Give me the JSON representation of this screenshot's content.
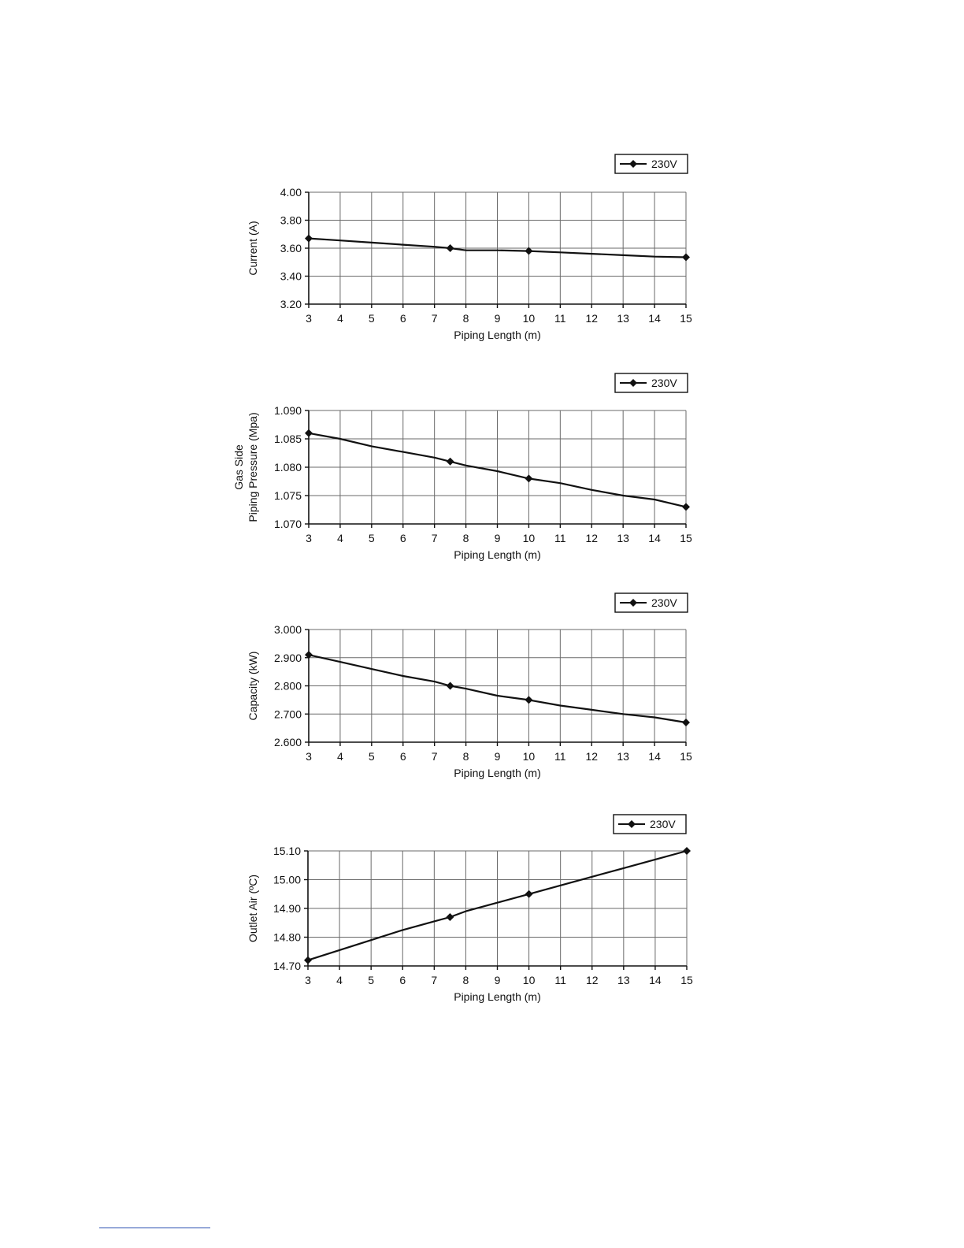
{
  "chart_data": [
    {
      "type": "line",
      "title": "",
      "xlabel": "Piping Length (m)",
      "ylabel": "Current (A)",
      "x_ticks": [
        3,
        4,
        5,
        6,
        7,
        8,
        9,
        10,
        11,
        12,
        13,
        14,
        15
      ],
      "y_ticks": [
        "3.20",
        "3.40",
        "3.60",
        "3.80",
        "4.00"
      ],
      "xlim": [
        3,
        15
      ],
      "ylim": [
        3.2,
        4.0
      ],
      "grid": true,
      "legend_position": "top-right",
      "series": [
        {
          "name": "230V",
          "x": [
            3,
            4,
            5,
            6,
            7,
            7.5,
            8,
            9,
            10,
            11,
            12,
            13,
            14,
            15
          ],
          "y": [
            3.67,
            3.655,
            3.64,
            3.625,
            3.61,
            3.6,
            3.585,
            3.585,
            3.58,
            3.57,
            3.56,
            3.55,
            3.54,
            3.535
          ],
          "markers_x": [
            3,
            7.5,
            10,
            15
          ],
          "markers_y": [
            3.67,
            3.6,
            3.58,
            3.535
          ]
        }
      ]
    },
    {
      "type": "line",
      "title": "",
      "xlabel": "Piping Length (m)",
      "ylabel_lines": [
        "Gas Side",
        "Piping Pressure (Mpa)"
      ],
      "x_ticks": [
        3,
        4,
        5,
        6,
        7,
        8,
        9,
        10,
        11,
        12,
        13,
        14,
        15
      ],
      "y_ticks": [
        "1.070",
        "1.075",
        "1.080",
        "1.085",
        "1.090"
      ],
      "xlim": [
        3,
        15
      ],
      "ylim": [
        1.07,
        1.09
      ],
      "grid": true,
      "legend_position": "top-right",
      "series": [
        {
          "name": "230V",
          "x": [
            3,
            4,
            5,
            6,
            7,
            7.5,
            8,
            9,
            10,
            11,
            12,
            13,
            14,
            15
          ],
          "y": [
            1.086,
            1.085,
            1.0837,
            1.0827,
            1.0817,
            1.081,
            1.0803,
            1.0793,
            1.078,
            1.0772,
            1.076,
            1.075,
            1.0743,
            1.073
          ],
          "markers_x": [
            3,
            7.5,
            10,
            15
          ],
          "markers_y": [
            1.086,
            1.081,
            1.078,
            1.073
          ]
        }
      ]
    },
    {
      "type": "line",
      "title": "",
      "xlabel": "Piping Length (m)",
      "ylabel": "Capacity (kW)",
      "x_ticks": [
        3,
        4,
        5,
        6,
        7,
        8,
        9,
        10,
        11,
        12,
        13,
        14,
        15
      ],
      "y_ticks": [
        "2.600",
        "2.700",
        "2.800",
        "2.900",
        "3.000"
      ],
      "xlim": [
        3,
        15
      ],
      "ylim": [
        2.6,
        3.0
      ],
      "grid": true,
      "legend_position": "top-right",
      "series": [
        {
          "name": "230V",
          "x": [
            3,
            4,
            5,
            6,
            7,
            7.5,
            8,
            9,
            10,
            11,
            12,
            13,
            14,
            15
          ],
          "y": [
            2.91,
            2.885,
            2.86,
            2.835,
            2.815,
            2.8,
            2.79,
            2.765,
            2.75,
            2.73,
            2.715,
            2.7,
            2.688,
            2.67
          ],
          "markers_x": [
            3,
            7.5,
            10,
            15
          ],
          "markers_y": [
            2.91,
            2.8,
            2.75,
            2.67
          ]
        }
      ]
    },
    {
      "type": "line",
      "title": "",
      "xlabel": "Piping Length (m)",
      "ylabel": "Outlet Air (ºC)",
      "x_ticks": [
        3,
        4,
        5,
        6,
        7,
        8,
        9,
        10,
        11,
        12,
        13,
        14,
        15
      ],
      "y_ticks": [
        "14.70",
        "14.80",
        "14.90",
        "15.00",
        "15.10"
      ],
      "xlim": [
        3,
        15
      ],
      "ylim": [
        14.7,
        15.1
      ],
      "grid": true,
      "legend_position": "top-right",
      "series": [
        {
          "name": "230V",
          "x": [
            3,
            4,
            5,
            6,
            7,
            7.5,
            8,
            9,
            10,
            11,
            12,
            13,
            14,
            15
          ],
          "y": [
            14.72,
            14.755,
            14.79,
            14.825,
            14.855,
            14.87,
            14.89,
            14.92,
            14.95,
            14.98,
            15.01,
            15.04,
            15.07,
            15.1
          ],
          "markers_x": [
            3,
            7.5,
            10,
            15
          ],
          "markers_y": [
            14.72,
            14.87,
            14.95,
            15.1
          ]
        }
      ]
    }
  ]
}
